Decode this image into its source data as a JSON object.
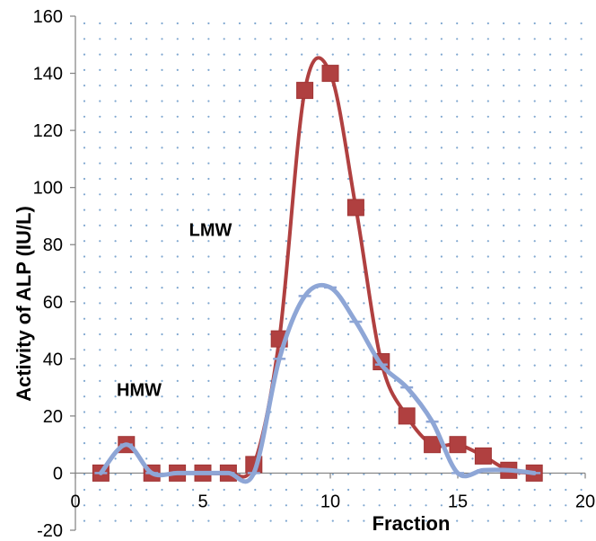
{
  "chart_data": {
    "type": "line",
    "title": "",
    "xlabel": "Fraction",
    "ylabel": "Activity of ALP (IU/L)",
    "xlim": [
      0,
      20
    ],
    "ylim": [
      -20,
      160
    ],
    "xticks": [
      0,
      5,
      10,
      15,
      20
    ],
    "yticks": [
      -20,
      0,
      20,
      40,
      60,
      80,
      100,
      120,
      140,
      160
    ],
    "grid": "dotted",
    "legend": "none",
    "series": [
      {
        "marker": "square",
        "color": "#b04040",
        "x": [
          1,
          2,
          3,
          4,
          5,
          6,
          7,
          8,
          9,
          10,
          11,
          12,
          13,
          14,
          15,
          16,
          17,
          18
        ],
        "y": [
          0,
          10,
          0,
          0,
          0,
          0,
          3,
          47,
          134,
          140,
          93,
          39,
          20,
          10,
          10,
          6,
          1,
          0
        ]
      },
      {
        "marker": "dash",
        "color": "#8ea6d6",
        "x": [
          1,
          2,
          3,
          4,
          5,
          6,
          7,
          8,
          9,
          10,
          11,
          12,
          13,
          14,
          15,
          16,
          17,
          18
        ],
        "y": [
          0,
          10,
          0,
          0,
          0,
          0,
          0,
          40,
          62,
          65,
          53,
          38,
          30,
          18,
          0,
          1,
          1,
          0
        ]
      }
    ],
    "annotations": [
      {
        "text": "LMW",
        "x": 5.3,
        "y": 83
      },
      {
        "text": "HMW",
        "x": 2.5,
        "y": 27
      }
    ]
  }
}
